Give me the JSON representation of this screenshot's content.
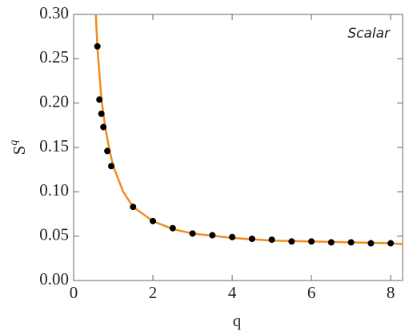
{
  "chart_data": {
    "type": "scatter",
    "annotation": "Scalar",
    "x_label": "q",
    "y_label": {
      "base": "S",
      "sup": "q"
    },
    "xlim": [
      0,
      8.3
    ],
    "ylim": [
      0,
      0.3
    ],
    "xticks": [
      0,
      2,
      4,
      6,
      8
    ],
    "yticks": [
      {
        "value": 0,
        "label": "0.00"
      },
      {
        "value": 0.05,
        "label": "0.05"
      },
      {
        "value": 0.1,
        "label": "0.10"
      },
      {
        "value": 0.15,
        "label": "0.15"
      },
      {
        "value": 0.2,
        "label": "0.20"
      },
      {
        "value": 0.25,
        "label": "0.25"
      },
      {
        "value": 0.3,
        "label": "0.30"
      }
    ],
    "series": [
      {
        "mode": "line",
        "color": "#f28c1c",
        "x": [
          0.56,
          0.6,
          0.7,
          0.8,
          0.9,
          1.0,
          1.25,
          1.5,
          2,
          2.5,
          3,
          4,
          5,
          6,
          7,
          8,
          8.3
        ],
        "values": [
          0.3,
          0.262,
          0.205,
          0.172,
          0.148,
          0.129,
          0.1,
          0.083,
          0.067,
          0.058,
          0.053,
          0.048,
          0.045,
          0.044,
          0.043,
          0.042,
          0.041
        ]
      },
      {
        "mode": "markers",
        "color": "#000000",
        "x": [
          0.6,
          0.65,
          0.7,
          0.75,
          0.85,
          0.95,
          1.5,
          2,
          2.5,
          3,
          3.5,
          4,
          4.5,
          5,
          5.5,
          6,
          6.5,
          7,
          7.5,
          8
        ],
        "values": [
          0.264,
          0.204,
          0.188,
          0.173,
          0.146,
          0.129,
          0.083,
          0.067,
          0.059,
          0.053,
          0.051,
          0.049,
          0.047,
          0.046,
          0.044,
          0.044,
          0.043,
          0.043,
          0.042,
          0.042
        ]
      }
    ]
  }
}
